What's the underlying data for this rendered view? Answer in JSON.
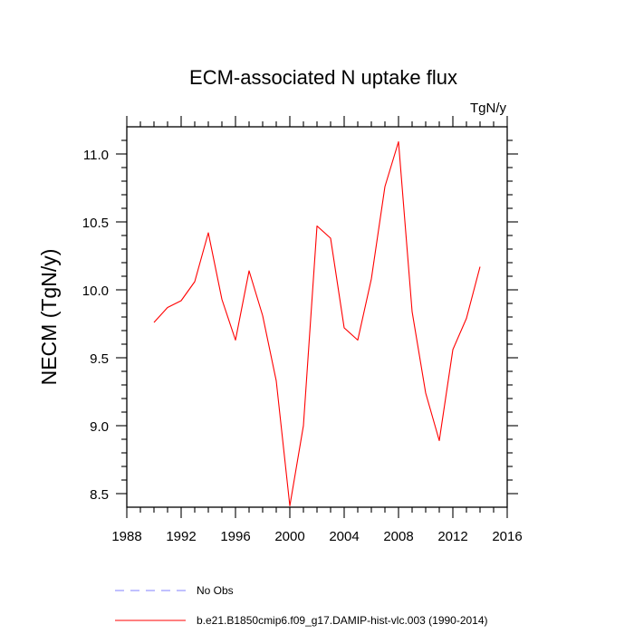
{
  "chart_data": {
    "type": "line",
    "title": "ECM-associated N uptake flux",
    "units": "TgN/y",
    "ylabel": "NECM  (TgN/y)",
    "xlabel": "",
    "xlim": [
      1988,
      2016
    ],
    "ylim": [
      8.4,
      11.2
    ],
    "xticks": [
      1988,
      1992,
      1996,
      2000,
      2004,
      2008,
      2012,
      2016
    ],
    "xtick_labels": [
      "1988",
      "1992",
      "1996",
      "2000",
      "2004",
      "2008",
      "2012",
      "2016"
    ],
    "yticks": [
      8.5,
      9.0,
      9.5,
      10.0,
      10.5,
      11.0
    ],
    "ytick_labels": [
      "8.5",
      "9.0",
      "9.5",
      "10.0",
      "10.5",
      "11.0"
    ],
    "grid": false,
    "legend_position": "bottom",
    "series": [
      {
        "name": "b.e21.B1850cmip6.f09_g17.DAMIP-hist-vlc.003 (1990-2014)",
        "color": "#ff0000",
        "style": "solid",
        "x": [
          1990,
          1991,
          1992,
          1993,
          1994,
          1995,
          1996,
          1997,
          1998,
          1999,
          2000,
          2001,
          2002,
          2003,
          2004,
          2005,
          2006,
          2007,
          2008,
          2009,
          2010,
          2011,
          2012,
          2013,
          2014
        ],
        "y": [
          9.76,
          9.87,
          9.92,
          10.06,
          10.42,
          9.93,
          9.63,
          10.14,
          9.81,
          9.33,
          8.41,
          9.0,
          10.47,
          10.38,
          9.72,
          9.63,
          10.08,
          10.76,
          11.09,
          9.84,
          9.24,
          8.89,
          9.56,
          9.79,
          10.17
        ]
      }
    ],
    "legend": [
      {
        "label": "No Obs",
        "color": "#8080ff",
        "style": "dashed"
      },
      {
        "label": "b.e21.B1850cmip6.f09_g17.DAMIP-hist-vlc.003 (1990-2014)",
        "color": "#ff0000",
        "style": "solid"
      }
    ]
  }
}
